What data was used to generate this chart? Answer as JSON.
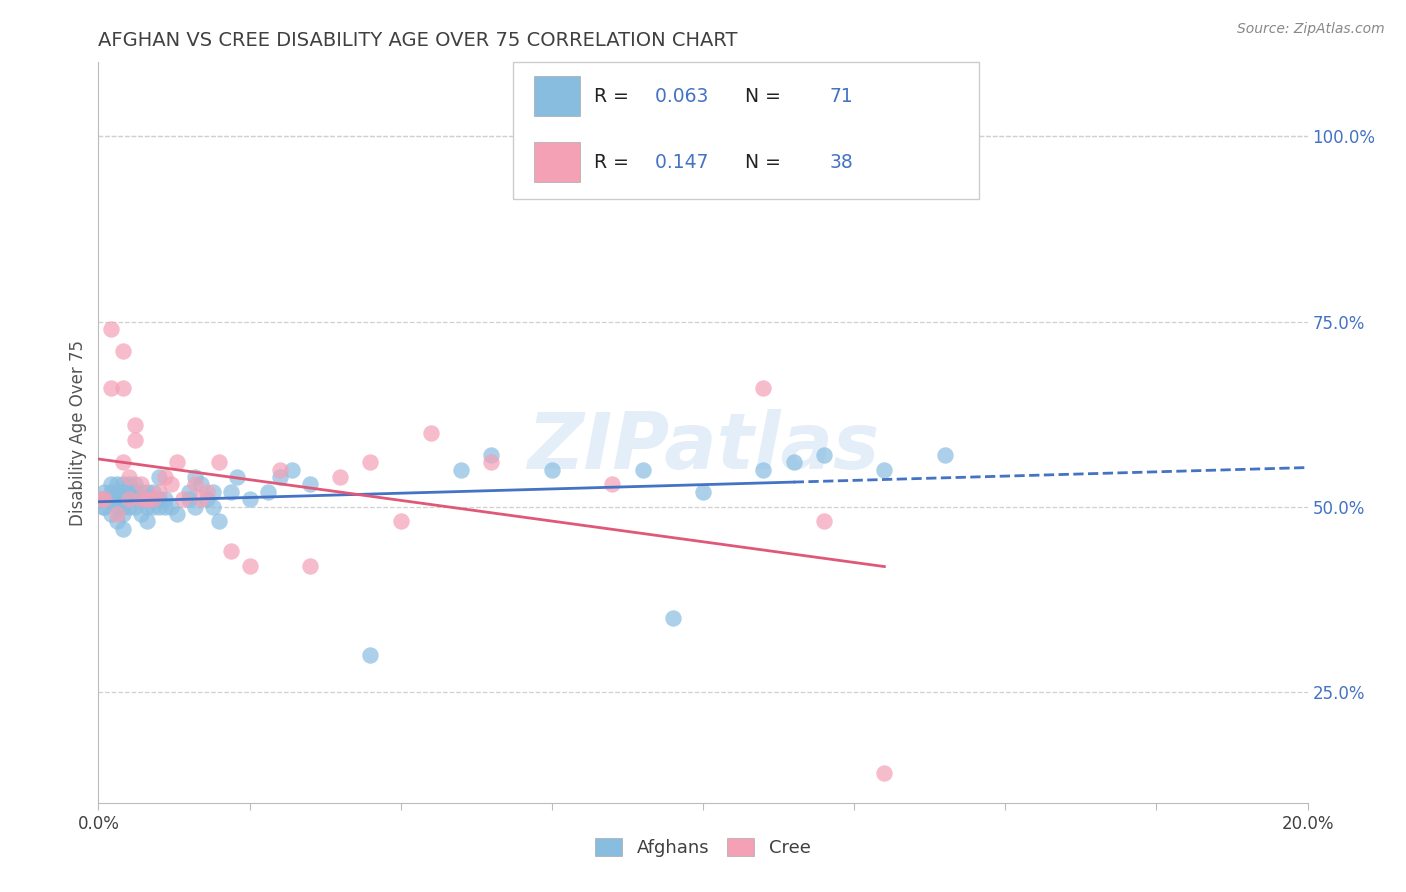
{
  "title": "AFGHAN VS CREE DISABILITY AGE OVER 75 CORRELATION CHART",
  "source": "Source: ZipAtlas.com",
  "ylabel": "Disability Age Over 75",
  "xlim": [
    0.0,
    0.2
  ],
  "ylim": [
    0.1,
    1.1
  ],
  "y_ticks_right": [
    0.25,
    0.5,
    0.75,
    1.0
  ],
  "y_tick_labels_right": [
    "25.0%",
    "50.0%",
    "75.0%",
    "100.0%"
  ],
  "grid_color": "#d0d0d0",
  "background_color": "#ffffff",
  "afghans_color": "#89bde0",
  "cree_color": "#f4a0b5",
  "afghans_line_color": "#4472c4",
  "cree_line_color": "#e05878",
  "legend_R_afghans": "0.063",
  "legend_N_afghans": "71",
  "legend_R_cree": "0.147",
  "legend_N_cree": "38",
  "legend_label_afghans": "Afghans",
  "legend_label_cree": "Cree",
  "afghans_x": [
    0.0005,
    0.0008,
    0.001,
    0.001,
    0.0015,
    0.002,
    0.002,
    0.002,
    0.002,
    0.003,
    0.003,
    0.003,
    0.003,
    0.003,
    0.004,
    0.004,
    0.004,
    0.004,
    0.004,
    0.004,
    0.005,
    0.005,
    0.005,
    0.005,
    0.006,
    0.006,
    0.006,
    0.006,
    0.007,
    0.007,
    0.007,
    0.008,
    0.008,
    0.008,
    0.009,
    0.009,
    0.01,
    0.01,
    0.01,
    0.011,
    0.011,
    0.012,
    0.013,
    0.015,
    0.015,
    0.016,
    0.016,
    0.017,
    0.018,
    0.019,
    0.019,
    0.02,
    0.022,
    0.023,
    0.025,
    0.028,
    0.03,
    0.032,
    0.035,
    0.045,
    0.06,
    0.065,
    0.075,
    0.09,
    0.095,
    0.1,
    0.11,
    0.115,
    0.12,
    0.13,
    0.14
  ],
  "afghans_y": [
    0.51,
    0.5,
    0.52,
    0.5,
    0.51,
    0.49,
    0.51,
    0.52,
    0.53,
    0.48,
    0.5,
    0.51,
    0.52,
    0.53,
    0.47,
    0.49,
    0.5,
    0.51,
    0.52,
    0.53,
    0.5,
    0.51,
    0.52,
    0.53,
    0.5,
    0.51,
    0.52,
    0.53,
    0.49,
    0.51,
    0.52,
    0.48,
    0.5,
    0.52,
    0.5,
    0.52,
    0.5,
    0.51,
    0.54,
    0.5,
    0.51,
    0.5,
    0.49,
    0.51,
    0.52,
    0.5,
    0.54,
    0.53,
    0.51,
    0.5,
    0.52,
    0.48,
    0.52,
    0.54,
    0.51,
    0.52,
    0.54,
    0.55,
    0.53,
    0.3,
    0.55,
    0.57,
    0.55,
    0.55,
    0.35,
    0.52,
    0.55,
    0.56,
    0.57,
    0.55,
    0.57
  ],
  "cree_x": [
    0.0005,
    0.001,
    0.002,
    0.002,
    0.003,
    0.004,
    0.004,
    0.004,
    0.005,
    0.005,
    0.006,
    0.006,
    0.007,
    0.007,
    0.008,
    0.009,
    0.01,
    0.011,
    0.012,
    0.013,
    0.014,
    0.016,
    0.017,
    0.018,
    0.02,
    0.022,
    0.025,
    0.03,
    0.035,
    0.04,
    0.045,
    0.05,
    0.055,
    0.065,
    0.085,
    0.11,
    0.12,
    0.13
  ],
  "cree_y": [
    0.51,
    0.51,
    0.66,
    0.74,
    0.49,
    0.56,
    0.66,
    0.71,
    0.51,
    0.54,
    0.59,
    0.61,
    0.51,
    0.53,
    0.51,
    0.51,
    0.52,
    0.54,
    0.53,
    0.56,
    0.51,
    0.53,
    0.51,
    0.52,
    0.56,
    0.44,
    0.42,
    0.55,
    0.42,
    0.54,
    0.56,
    0.48,
    0.6,
    0.56,
    0.53,
    0.66,
    0.48,
    0.14
  ],
  "watermark": "ZIPatlas",
  "title_color": "#404040",
  "title_fontsize": 14,
  "axis_label_color": "#555555",
  "tick_color": "#404040",
  "source_color": "#888888",
  "afghan_line_solid_end": 0.115,
  "afghan_line_dashed_end": 0.2,
  "cree_line_solid_end": 0.13
}
